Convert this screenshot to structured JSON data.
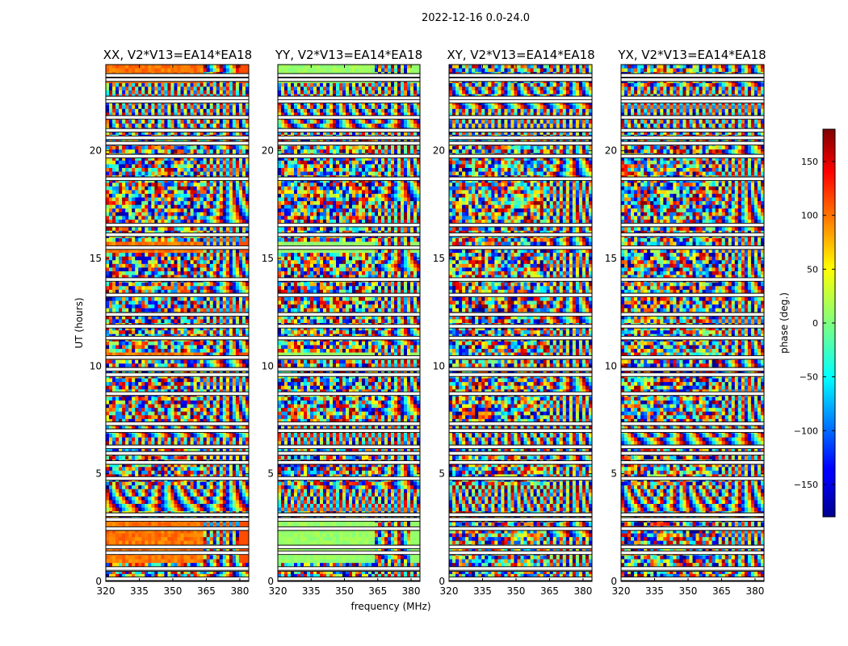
{
  "figure": {
    "suptitle": "2022-12-16 0.0-24.0",
    "ylabel": "UT (hours)",
    "xlabel": "frequency (MHz)"
  },
  "chart_data": {
    "type": "heatmap",
    "suptitle": "2022-12-16 0.0-24.0",
    "panels": [
      {
        "title": "XX, V2*V13=EA14*EA18",
        "pol": "XX"
      },
      {
        "title": "YY, V2*V13=EA14*EA18",
        "pol": "YY"
      },
      {
        "title": "XY, V2*V13=EA14*EA18",
        "pol": "XY"
      },
      {
        "title": "YX, V2*V13=EA14*EA18",
        "pol": "YX"
      }
    ],
    "xlabel": "frequency (MHz)",
    "ylabel": "UT (hours)",
    "xlim": [
      320,
      384
    ],
    "ylim": [
      0,
      24
    ],
    "xticks": [
      320,
      335,
      350,
      365,
      380
    ],
    "yticks": [
      0,
      5,
      10,
      15,
      20
    ],
    "colorbar": {
      "label": "phase (deg.)",
      "range": [
        -180,
        180
      ],
      "ticks": [
        150,
        100,
        50,
        0,
        -50,
        -100,
        -150
      ],
      "tick_labels": [
        "150",
        "100",
        "50",
        "0",
        "−50",
        "−100",
        "−150"
      ],
      "colormap": "jet"
    },
    "flagged_hours": [
      0.12,
      0.55,
      0.6,
      1.33,
      1.6,
      2.45,
      2.88,
      3.1,
      4.78,
      5.52,
      5.95,
      6.25,
      7.0,
      7.32,
      8.72,
      9.6,
      9.85,
      10.4,
      11.3,
      11.85,
      12.4,
      13.3,
      14.02,
      15.5,
      16.1,
      16.55,
      18.7,
      19.75,
      20.35,
      20.6,
      20.95,
      21.55,
      22.3,
      22.45,
      23.3,
      23.5
    ]
  }
}
